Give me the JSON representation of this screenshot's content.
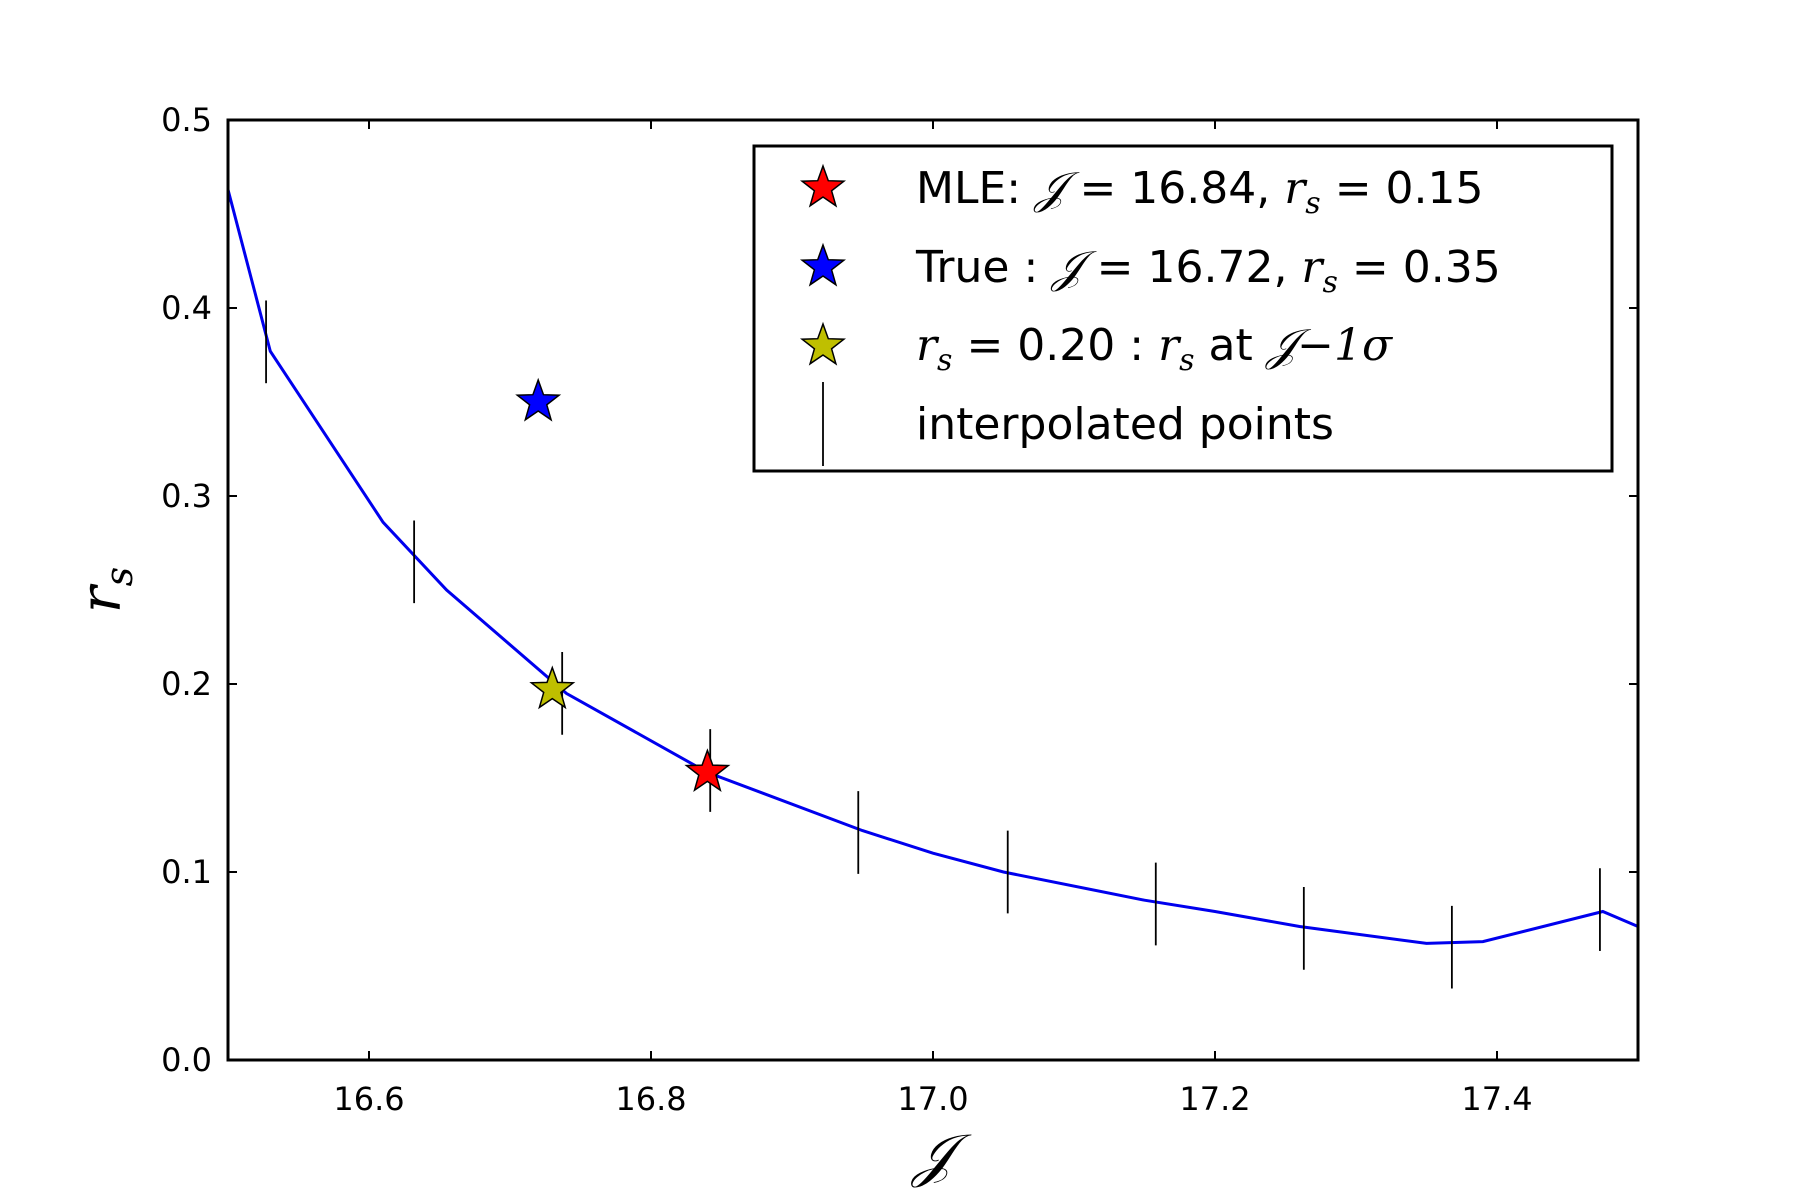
{
  "chart_data": {
    "type": "line",
    "xlabel": "𝒥",
    "ylabel_base": "r",
    "ylabel_sub": "s",
    "xlim": [
      16.5,
      17.5
    ],
    "ylim": [
      0.0,
      0.5
    ],
    "xticks": [
      16.6,
      16.8,
      17.0,
      17.2,
      17.4
    ],
    "xtick_labels": [
      "16.6",
      "16.8",
      "17.0",
      "17.2",
      "17.4"
    ],
    "yticks": [
      0.0,
      0.1,
      0.2,
      0.3,
      0.4,
      0.5
    ],
    "ytick_labels": [
      "0.0",
      "0.1",
      "0.2",
      "0.3",
      "0.4",
      "0.5"
    ],
    "grid": false,
    "legend_position": "upper-right",
    "curve": {
      "color": "#0000ee",
      "x": [
        16.5,
        16.53,
        16.61,
        16.655,
        16.74,
        16.84,
        16.95,
        17.0,
        17.05,
        17.15,
        17.2,
        17.26,
        17.35,
        17.39,
        17.475,
        17.5
      ],
      "y": [
        0.463,
        0.377,
        0.286,
        0.25,
        0.195,
        0.153,
        0.122,
        0.11,
        0.1,
        0.085,
        0.079,
        0.071,
        0.062,
        0.063,
        0.079,
        0.071
      ]
    },
    "interpolated_points": {
      "color": "#000000",
      "x": [
        16.527,
        16.632,
        16.737,
        16.842,
        16.947,
        17.053,
        17.158,
        17.263,
        17.368,
        17.473
      ],
      "y": [
        0.382,
        0.265,
        0.195,
        0.154,
        0.121,
        0.1,
        0.083,
        0.07,
        0.06,
        0.08
      ],
      "half_height": 0.022
    },
    "markers": [
      {
        "name": "mle",
        "x": 16.84,
        "y": 0.153,
        "color": "#ff0000"
      },
      {
        "name": "true",
        "x": 16.72,
        "y": 0.35,
        "color": "#0000ff"
      },
      {
        "name": "jminus1sigma",
        "x": 16.73,
        "y": 0.197,
        "color": "#bfbf00"
      }
    ],
    "legend": {
      "mle_prefix": "MLE: ",
      "mle_j_sym": "𝒥",
      "mle_j_val": " = 16.84, ",
      "mle_r_sym": "r",
      "mle_r_sub": "s",
      "mle_r_val": " = 0.15",
      "true_prefix": "True : ",
      "true_j_sym": "𝒥",
      "true_j_val": " = 16.72, ",
      "true_r_sym": "r",
      "true_r_sub": "s",
      "true_r_val": " = 0.35",
      "sig_r_sym": "r",
      "sig_r_sub": "s",
      "sig_text1": " = 0.20 : ",
      "sig_r2_sym": "r",
      "sig_r2_sub": "s",
      "sig_text2": " at ",
      "sig_j_sym": "𝒥",
      "sig_text3": "−1σ",
      "interp_label": "interpolated points"
    }
  }
}
